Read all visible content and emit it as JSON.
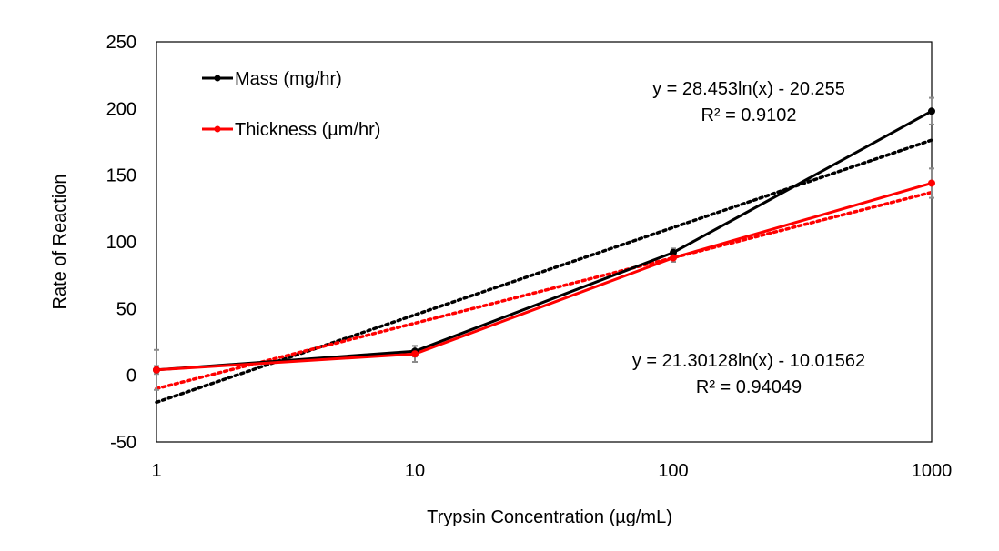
{
  "chart_data": {
    "type": "line",
    "xlabel": "Trypsin Concentration (µg/mL)",
    "ylabel": "Rate of Reaction",
    "x_scale": "log",
    "x": [
      1,
      10,
      100,
      1000
    ],
    "x_tick_labels": [
      "1",
      "10",
      "100",
      "1000"
    ],
    "ylim": [
      -50,
      250
    ],
    "y_ticks": [
      -50,
      0,
      50,
      100,
      150,
      200,
      250
    ],
    "grid": false,
    "legend_position": "top-left",
    "series": [
      {
        "name": "Mass (mg/hr)",
        "color": "#000000",
        "values": [
          4,
          18,
          92,
          198
        ],
        "error": [
          15,
          4,
          3,
          10
        ],
        "trendline": {
          "type": "logarithmic",
          "a": 28.453,
          "b": -20.255,
          "equation": "y = 28.453ln(x) - 20.255",
          "r2": "R² = 0.9102"
        }
      },
      {
        "name": "Thickness (µm/hr)",
        "color": "#ff0000",
        "values": [
          4,
          16,
          88,
          144
        ],
        "error": [
          3,
          6,
          3,
          11
        ],
        "trendline": {
          "type": "logarithmic",
          "a": 21.30128,
          "b": -10.01562,
          "equation": "y = 21.30128ln(x) - 10.01562",
          "r2": "R² = 0.94049"
        }
      }
    ]
  }
}
